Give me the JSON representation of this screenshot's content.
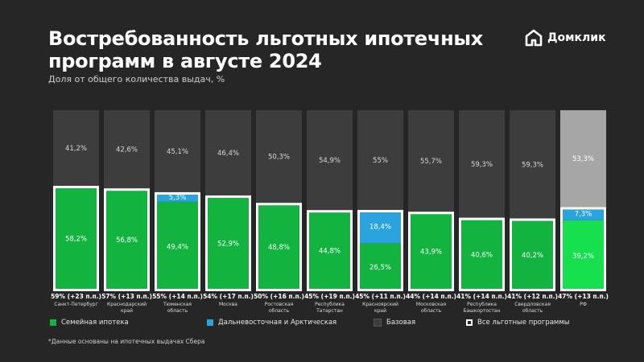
{
  "header": {
    "title": "Востребованность льготных ипотечных программ в августе 2024",
    "subtitle": "Доля от общего количества выдач, %",
    "brand": "Домклик"
  },
  "colors": {
    "background": "#262626",
    "family": "#12b33f",
    "family_rf": "#17e04f",
    "far_east": "#2aa3df",
    "base": "#3d3d3d",
    "base_rf": "#a6a6a6",
    "outline": "#ffffff"
  },
  "chart_data": {
    "type": "bar",
    "stacked": true,
    "ylim": [
      0,
      100
    ],
    "categories": [
      "Санкт-Петербург",
      "Краснодарский край",
      "Тюменская область",
      "Москва",
      "Ростовская область",
      "Республика Татарстан",
      "Красноярский край",
      "Московская область",
      "Республика Башкортостан",
      "Свердловская область",
      "РФ"
    ],
    "summary_labels": [
      "59% (+23 п.п.)",
      "57% (+13 п.п.)",
      "55% (+14 п.п.)",
      "54% (+17 п.п.)",
      "50% (+16 п.п.)",
      "45% (+19 п.п.)",
      "45% (+11 п.п.)",
      "44% (+14 п.п.)",
      "41% (+14 п.п.)",
      "41% (+12 п.п.)",
      "47% (+13 п.п.)"
    ],
    "series": [
      {
        "name": "Семейная ипотека",
        "values": [
          58.2,
          56.8,
          49.4,
          52.9,
          48.8,
          44.8,
          26.5,
          43.9,
          40.6,
          40.2,
          39.2
        ],
        "labels": [
          "58,2%",
          "56,8%",
          "49,4%",
          "52,9%",
          "48,8%",
          "44,8%",
          "26,5%",
          "43,9%",
          "40,6%",
          "40,2%",
          "39,2%"
        ]
      },
      {
        "name": "Дальневосточная и Арктическая",
        "values": [
          0,
          0,
          5.3,
          0,
          0,
          0,
          18.4,
          0,
          0,
          0,
          7.3
        ],
        "labels": [
          "",
          "",
          "5,3%",
          "",
          "",
          "",
          "18,4%",
          "",
          "",
          "",
          "7,3%"
        ]
      },
      {
        "name": "Базовая",
        "values": [
          41.2,
          42.6,
          45.1,
          46.4,
          50.3,
          54.9,
          55,
          55.7,
          59.3,
          59.3,
          53.3
        ],
        "labels": [
          "41,2%",
          "42,6%",
          "45,1%",
          "46,4%",
          "50,3%",
          "54,9%",
          "55%",
          "55,7%",
          "59,3%",
          "59,3%",
          "53,3%"
        ]
      }
    ],
    "legend": [
      "Семейная ипотека",
      "Дальневосточная и Арктическая",
      "Базовая",
      "Все льготные программы"
    ]
  },
  "footnote": "*Данные основаны на ипотечных выдачах Сбера"
}
